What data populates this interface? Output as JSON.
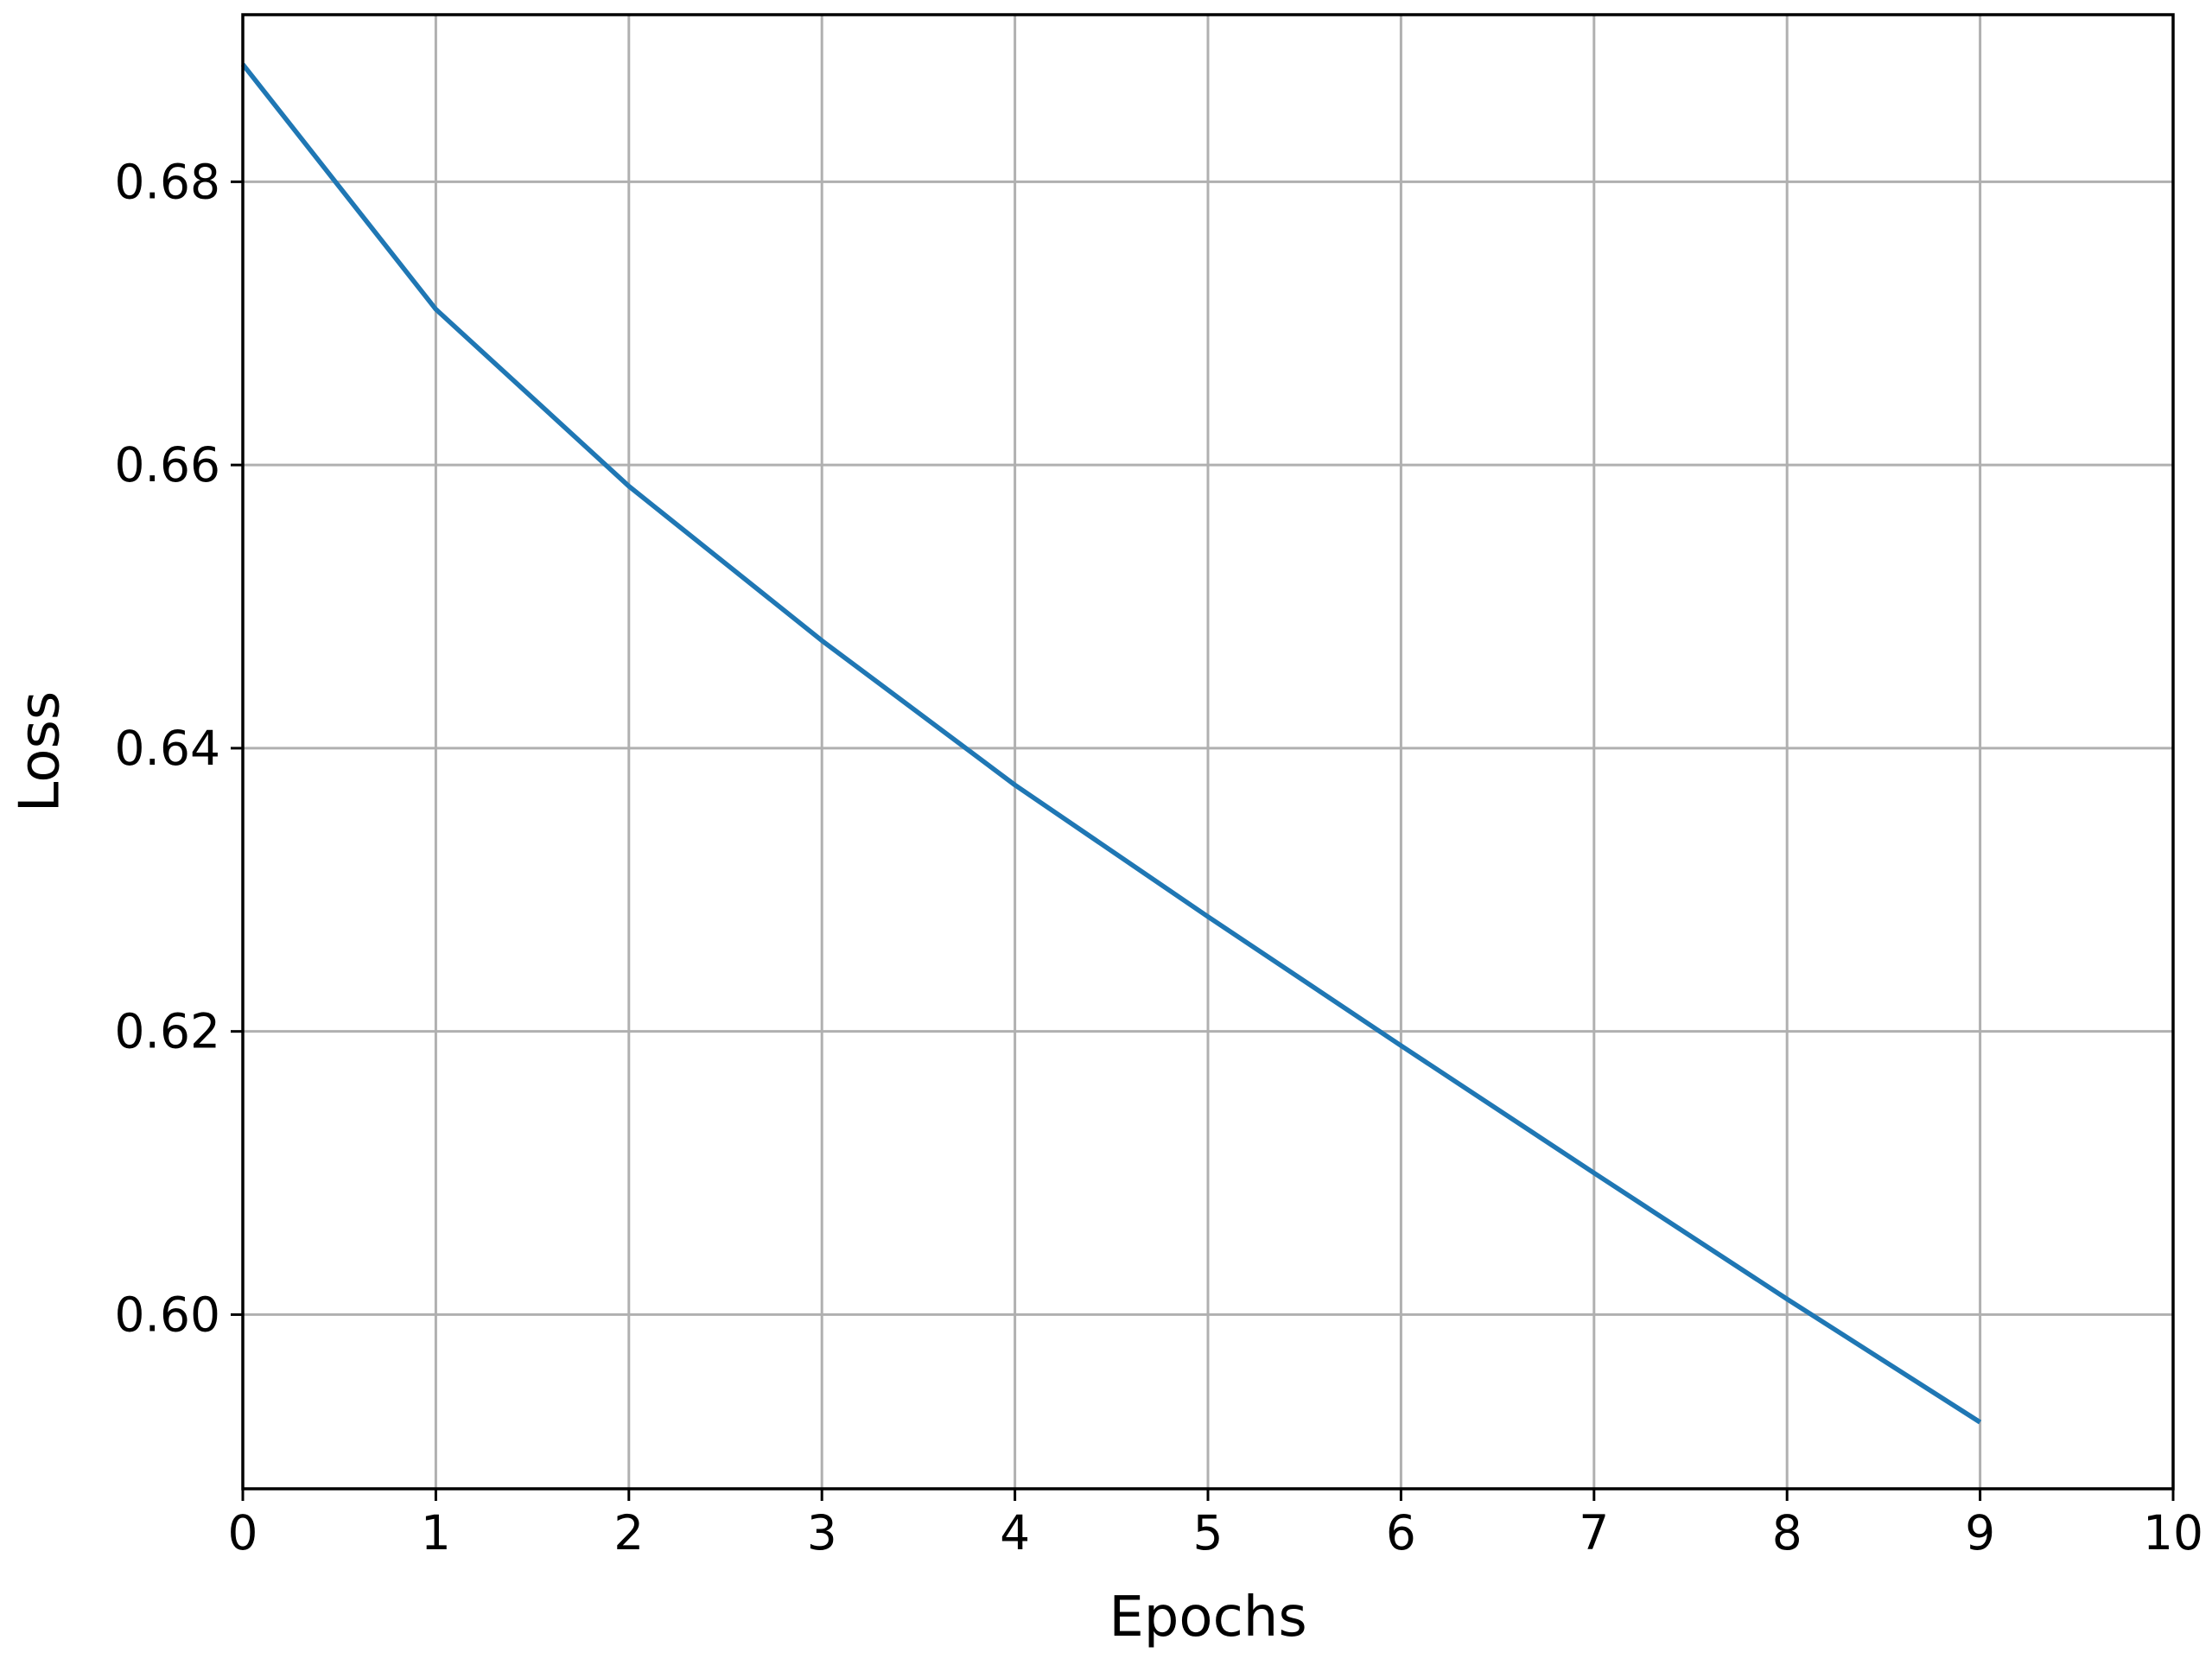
{
  "chart_data": {
    "type": "line",
    "title": "",
    "xlabel": "Epochs",
    "ylabel": "Loss",
    "xlim": [
      0,
      10
    ],
    "ylim": [
      0.5877,
      0.6918
    ],
    "x_ticks": [
      0,
      1,
      2,
      3,
      4,
      5,
      6,
      7,
      8,
      9,
      10
    ],
    "x_tick_labels": [
      "0",
      "1",
      "2",
      "3",
      "4",
      "5",
      "6",
      "7",
      "8",
      "9",
      "10"
    ],
    "y_ticks": [
      0.6,
      0.62,
      0.64,
      0.66,
      0.68
    ],
    "y_tick_labels": [
      "0.60",
      "0.62",
      "0.64",
      "0.66",
      "0.68"
    ],
    "grid": true,
    "legend": "none",
    "series": [
      {
        "color": "#1f77b4",
        "x": [
          0,
          1,
          2,
          3,
          4,
          5,
          6,
          7,
          8,
          9
        ],
        "values": [
          0.6883,
          0.671,
          0.6585,
          0.6476,
          0.6374,
          0.6281,
          0.619,
          0.61,
          0.6011,
          0.5924
        ]
      }
    ]
  }
}
